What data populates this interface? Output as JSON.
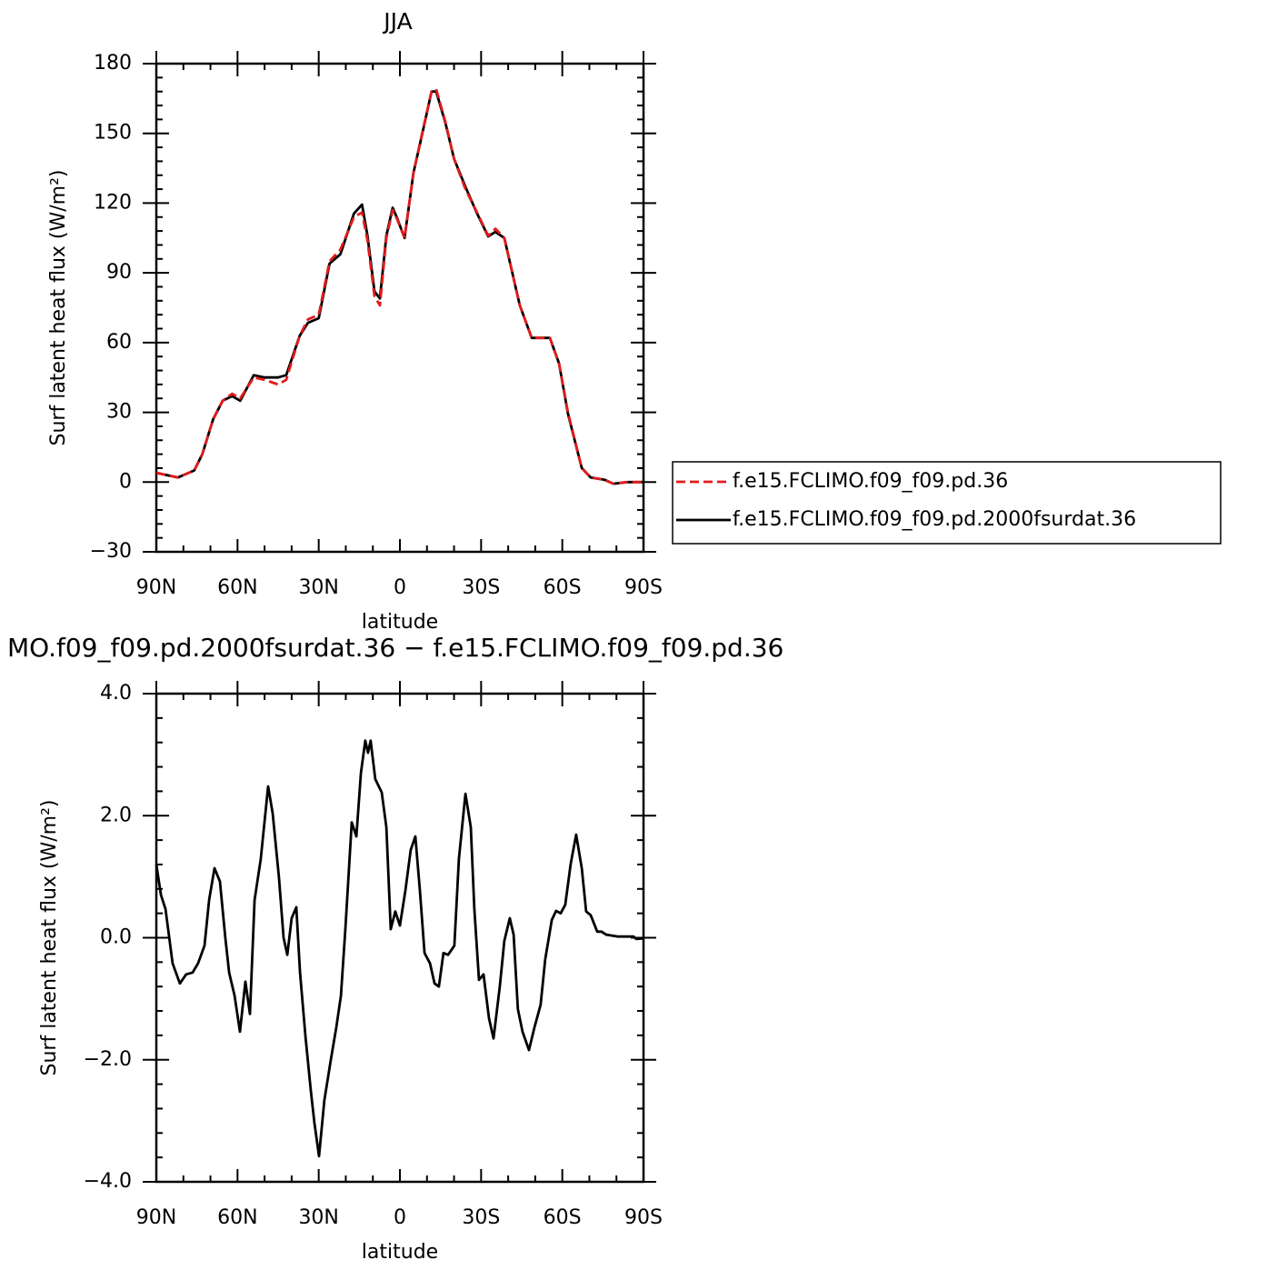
{
  "chart_data": [
    {
      "type": "line",
      "title": "JJA",
      "ylabel": "Surf latent heat flux (W/m²)",
      "xlabel": "latitude",
      "x": [
        90,
        82,
        76,
        73,
        69,
        65.5,
        62,
        59,
        54,
        50,
        45,
        42,
        37,
        34,
        30,
        26,
        22,
        17,
        14,
        12,
        9.4,
        7.4,
        5,
        2.7,
        1,
        -1.7,
        -5,
        -8.4,
        -11.7,
        -13.4,
        -16.8,
        -20,
        -24.2,
        -28.5,
        -32.6,
        -35.3,
        -38.6,
        -44.3,
        -48.7,
        -52,
        -55.4,
        -58.8,
        -62.1,
        -67.2,
        -70.5,
        -75.6,
        -78.9,
        -84,
        -90
      ],
      "series": [
        {
          "name": "f.e15.FCLIMO.f09_f09.pd.36",
          "color": "#e41a1c",
          "line_style": "dashed",
          "values": [
            4,
            2,
            5,
            12,
            27,
            35,
            38,
            36,
            45,
            44,
            42,
            44,
            63,
            70,
            72,
            95,
            100,
            114,
            116,
            104,
            80,
            76,
            105,
            117,
            113,
            105,
            133,
            151,
            168,
            169,
            155,
            139,
            126,
            116,
            106,
            109,
            105,
            76,
            62,
            62,
            62,
            51,
            30,
            6,
            2,
            1,
            -0.7,
            0,
            0
          ]
        },
        {
          "name": "f.e15.FCLIMO.f09_f09.pd.2000fsurdat.36",
          "color": "#000000",
          "line_style": "solid",
          "values": [
            4,
            2,
            5,
            12,
            27,
            35,
            37,
            35,
            46,
            45,
            45,
            46,
            63,
            68.5,
            70.5,
            94,
            98,
            115.5,
            119.4,
            106,
            82,
            79,
            106,
            118,
            113.5,
            105,
            133,
            150.6,
            168,
            168,
            154.6,
            139,
            127,
            115.5,
            105.7,
            107.6,
            105,
            76,
            62,
            62,
            62,
            51,
            29.4,
            6,
            2,
            1,
            -0.7,
            0,
            0
          ]
        }
      ],
      "xlim": [
        90,
        -90
      ],
      "xticks": [
        {
          "value": 90,
          "label": "90N"
        },
        {
          "value": 60,
          "label": "60N"
        },
        {
          "value": 30,
          "label": "30N"
        },
        0,
        {
          "value": -30,
          "label": "30S"
        },
        {
          "value": -60,
          "label": "60S"
        },
        {
          "value": -90,
          "label": "90S"
        }
      ],
      "ylim": [
        -30,
        180
      ],
      "yticks": [
        {
          "value": -30,
          "label": "−30"
        },
        0,
        30,
        60,
        90,
        120,
        150,
        180
      ]
    },
    {
      "type": "line",
      "title": "MO.f09_f09.pd.2000fsurdat.36 − f.e15.FCLIMO.f09_f09.pd.36",
      "ylabel": "Surf latent heat flux (W/m²)",
      "xlabel": "latitude",
      "x": [
        90,
        88.3,
        86.6,
        84,
        81.3,
        79,
        76.6,
        74.6,
        72.2,
        70.5,
        68.5,
        66.5,
        64.5,
        63.1,
        61.1,
        59.1,
        57.1,
        55.4,
        53.7,
        51.4,
        48.7,
        47,
        44.7,
        43,
        41.6,
        40,
        38.3,
        36.9,
        34.9,
        32.9,
        31.6,
        29.9,
        27.9,
        25.5,
        23.5,
        21.8,
        20.1,
        17.8,
        16.1,
        14.4,
        12.8,
        11.8,
        10.8,
        9.1,
        6.7,
        5,
        3.4,
        1.7,
        0,
        -2,
        -4,
        -5.7,
        -7.4,
        -9.1,
        -11.1,
        -12.8,
        -14.4,
        -16.1,
        -17.8,
        -20.1,
        -21.8,
        -24.2,
        -26.2,
        -27.5,
        -29.2,
        -30.9,
        -32.9,
        -34.6,
        -36.9,
        -38.6,
        -40.6,
        -42,
        -43.6,
        -45.3,
        -47.7,
        -49.7,
        -52,
        -53.7,
        -56.1,
        -57.7,
        -59.4,
        -61.1,
        -63.1,
        -65.1,
        -67.2,
        -68.8,
        -70.5,
        -72.9,
        -74.5,
        -76.2,
        -80.6,
        -86.3,
        -87.3,
        -90
      ],
      "series": [
        {
          "color": "#000000",
          "line_style": "solid",
          "values": [
            1.2,
            0.7,
            0.47,
            -0.42,
            -0.75,
            -0.6,
            -0.57,
            -0.42,
            -0.13,
            0.62,
            1.14,
            0.92,
            0,
            -0.57,
            -0.95,
            -1.54,
            -0.72,
            -1.25,
            0.62,
            1.29,
            2.48,
            2.04,
            0.99,
            0,
            -0.28,
            0.32,
            0.5,
            -0.57,
            -1.62,
            -2.51,
            -3.03,
            -3.58,
            -2.66,
            -1.99,
            -1.47,
            -0.95,
            0.17,
            1.89,
            1.66,
            2.7,
            3.23,
            3.03,
            3.23,
            2.6,
            2.38,
            1.81,
            0.14,
            0.43,
            0.2,
            0.77,
            1.44,
            1.66,
            0.77,
            -0.25,
            -0.42,
            -0.75,
            -0.8,
            -0.25,
            -0.28,
            -0.13,
            1.29,
            2.36,
            1.81,
            0.47,
            -0.69,
            -0.6,
            -1.32,
            -1.65,
            -0.8,
            -0.05,
            0.32,
            0.05,
            -1.17,
            -1.54,
            -1.84,
            -1.47,
            -1.1,
            -0.35,
            0.29,
            0.44,
            0.4,
            0.54,
            1.21,
            1.69,
            1.14,
            0.43,
            0.37,
            0.1,
            0.1,
            0.05,
            0.02,
            0.02,
            -0.02,
            -0.01
          ]
        }
      ],
      "xlim": [
        90,
        -90
      ],
      "xticks": [
        {
          "value": 90,
          "label": "90N"
        },
        {
          "value": 60,
          "label": "60N"
        },
        {
          "value": 30,
          "label": "30N"
        },
        0,
        {
          "value": -30,
          "label": "30S"
        },
        {
          "value": -60,
          "label": "60S"
        },
        {
          "value": -90,
          "label": "90S"
        }
      ],
      "ylim": [
        -4,
        4
      ],
      "yticks": [
        {
          "value": -4,
          "label": "−4.0"
        },
        {
          "value": -2,
          "label": "−2.0"
        },
        {
          "value": 0,
          "label": "0.0"
        },
        {
          "value": 2,
          "label": "2.0"
        },
        {
          "value": 4,
          "label": "4.0"
        }
      ]
    }
  ]
}
